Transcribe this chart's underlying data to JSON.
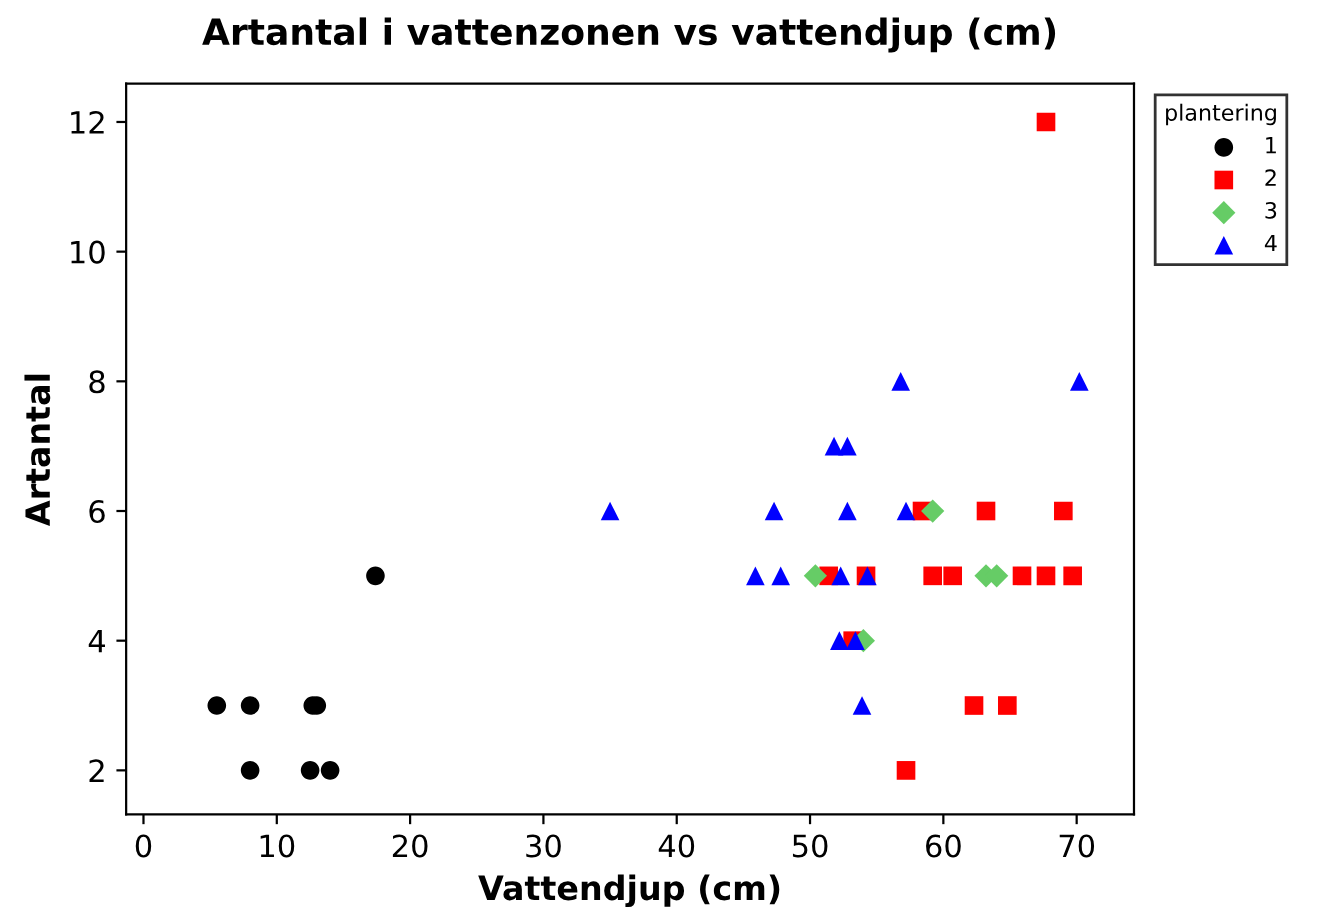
{
  "chart_data": {
    "type": "scatter",
    "title": "Artantal i vattenzonen vs vattendjup (cm)",
    "xlabel": "Vattendjup (cm)",
    "ylabel": "Artantal",
    "legend_title": "plantering",
    "legend": "right",
    "grid": false,
    "xlim": [
      -1.3,
      74.3
    ],
    "xticks": [
      0,
      10,
      20,
      30,
      40,
      50,
      60,
      70
    ],
    "ylim": [
      1.32,
      12.59
    ],
    "yticks": [
      2,
      4,
      6,
      8,
      10,
      12
    ],
    "series": [
      {
        "name": "1",
        "color": "#000000",
        "marker": "circle",
        "x": [
          5.5,
          8.0,
          12.7,
          13.0,
          8.0,
          12.5,
          14.0,
          17.4
        ],
        "values": [
          3,
          3,
          3,
          3,
          2,
          2,
          2,
          5
        ]
      },
      {
        "name": "2",
        "color": "#ff0000",
        "marker": "square",
        "x": [
          58.4,
          63.2,
          69.0,
          51.4,
          54.2,
          59.2,
          60.7,
          65.9,
          67.7,
          69.7,
          53.2,
          62.3,
          64.8,
          57.2,
          67.7
        ],
        "values": [
          6,
          6,
          6,
          5,
          5,
          5,
          5,
          5,
          5,
          5,
          4,
          3,
          3,
          2,
          12
        ]
      },
      {
        "name": "3",
        "color": "#66cc66",
        "marker": "diamond",
        "x": [
          59.2,
          50.4,
          63.2,
          64.0,
          54.0
        ],
        "values": [
          6,
          5,
          5,
          5,
          4
        ]
      },
      {
        "name": "4",
        "color": "#0000ff",
        "marker": "triangle",
        "x": [
          56.8,
          70.2,
          51.8,
          52.8,
          35.0,
          47.3,
          52.8,
          57.2,
          45.9,
          47.8,
          52.3,
          54.3,
          52.2,
          53.4,
          53.9
        ],
        "values": [
          8,
          8,
          7,
          7,
          6,
          6,
          6,
          6,
          5,
          5,
          5,
          5,
          4,
          4,
          3
        ]
      }
    ]
  }
}
